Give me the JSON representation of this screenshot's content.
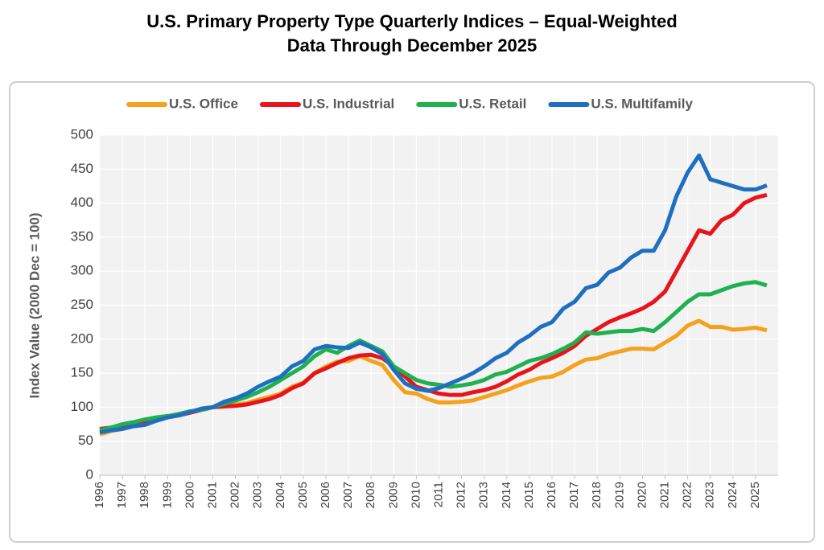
{
  "chart_data": {
    "type": "line",
    "title": "U.S. Primary Property Type Quarterly Indices – Equal-Weighted",
    "subtitle": "Data Through December 2025",
    "y_label": "Index Value (2000 Dec = 100)",
    "x": [
      1996,
      1996.5,
      1997,
      1997.5,
      1998,
      1998.5,
      1999,
      1999.5,
      2000,
      2000.5,
      2001,
      2001.5,
      2002,
      2002.5,
      2003,
      2003.5,
      2004,
      2004.5,
      2005,
      2005.5,
      2006,
      2006.5,
      2007,
      2007.5,
      2008,
      2008.5,
      2009,
      2009.5,
      2010,
      2010.5,
      2011,
      2011.5,
      2012,
      2012.5,
      2013,
      2013.5,
      2014,
      2014.5,
      2015,
      2015.5,
      2016,
      2016.5,
      2017,
      2017.5,
      2018,
      2018.5,
      2019,
      2019.5,
      2020,
      2020.5,
      2021,
      2021.5,
      2022,
      2022.5,
      2023,
      2023.5,
      2024,
      2024.5,
      2025,
      2025.5
    ],
    "series": [
      {
        "name": "U.S. Office",
        "color": "#f5a11c",
        "values": [
          60,
          65,
          68,
          74,
          78,
          82,
          85,
          88,
          93,
          97,
          100,
          101,
          104,
          106,
          111,
          115,
          120,
          130,
          136,
          150,
          160,
          167,
          168,
          175,
          168,
          162,
          140,
          122,
          120,
          112,
          107,
          107,
          108,
          110,
          115,
          120,
          125,
          132,
          138,
          143,
          145,
          152,
          162,
          170,
          172,
          178,
          182,
          186,
          186,
          185,
          195,
          205,
          220,
          227,
          218,
          218,
          214,
          215,
          217,
          213
        ]
      },
      {
        "name": "U.S. Industrial",
        "color": "#e8141b",
        "values": [
          68,
          70,
          72,
          76,
          78,
          82,
          86,
          88,
          92,
          96,
          100,
          101,
          102,
          104,
          108,
          112,
          118,
          128,
          135,
          150,
          157,
          165,
          172,
          176,
          177,
          172,
          160,
          145,
          130,
          125,
          120,
          118,
          118,
          122,
          125,
          130,
          138,
          148,
          155,
          165,
          172,
          180,
          190,
          205,
          215,
          225,
          232,
          238,
          245,
          255,
          270,
          300,
          330,
          360,
          355,
          375,
          383,
          400,
          408,
          412
        ]
      },
      {
        "name": "U.S. Retail",
        "color": "#1fb04f",
        "values": [
          66,
          70,
          75,
          78,
          82,
          85,
          87,
          90,
          94,
          96,
          100,
          105,
          110,
          115,
          122,
          130,
          140,
          150,
          160,
          175,
          185,
          180,
          190,
          198,
          190,
          182,
          160,
          150,
          140,
          135,
          133,
          130,
          132,
          135,
          140,
          148,
          152,
          160,
          168,
          172,
          178,
          186,
          195,
          210,
          208,
          210,
          212,
          212,
          215,
          212,
          225,
          240,
          255,
          266,
          266,
          272,
          278,
          282,
          284,
          279
        ]
      },
      {
        "name": "U.S. Multifamily",
        "color": "#1f6fc0",
        "values": [
          63,
          66,
          68,
          72,
          74,
          80,
          85,
          88,
          93,
          98,
          100,
          108,
          113,
          120,
          130,
          138,
          145,
          160,
          168,
          185,
          190,
          188,
          187,
          195,
          188,
          178,
          155,
          135,
          127,
          124,
          128,
          135,
          142,
          150,
          160,
          172,
          180,
          195,
          205,
          218,
          225,
          245,
          255,
          275,
          280,
          298,
          305,
          320,
          330,
          330,
          360,
          410,
          445,
          470,
          435,
          430,
          425,
          420,
          420,
          426
        ]
      }
    ],
    "xlim": [
      1996,
      2026
    ],
    "xticks": [
      1996,
      1997,
      1998,
      1999,
      2000,
      2001,
      2002,
      2003,
      2004,
      2005,
      2006,
      2007,
      2008,
      2009,
      2010,
      2011,
      2012,
      2013,
      2014,
      2015,
      2016,
      2017,
      2018,
      2019,
      2020,
      2021,
      2022,
      2023,
      2024,
      2025
    ],
    "ylim": [
      0,
      500
    ],
    "yticks": [
      0,
      50,
      100,
      150,
      200,
      250,
      300,
      350,
      400,
      450,
      500
    ],
    "grid": true,
    "legend": "top"
  }
}
